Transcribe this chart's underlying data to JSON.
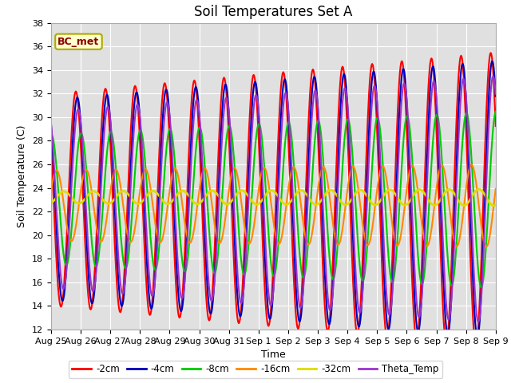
{
  "title": "Soil Temperatures Set A",
  "xlabel": "Time",
  "ylabel": "Soil Temperature (C)",
  "ylim": [
    12,
    38
  ],
  "xlim": [
    0,
    15
  ],
  "annotation": "BC_met",
  "background_color": "#e0e0e0",
  "legend_entries": [
    "-2cm",
    "-4cm",
    "-8cm",
    "-16cm",
    "-32cm",
    "Theta_Temp"
  ],
  "line_colors": [
    "#ff0000",
    "#0000bb",
    "#00cc00",
    "#ff8800",
    "#dddd00",
    "#9933cc"
  ],
  "x_tick_labels": [
    "Aug 25",
    "Aug 26",
    "Aug 27",
    "Aug 28",
    "Aug 29",
    "Aug 30",
    "Aug 31",
    "Sep 1",
    "Sep 2",
    "Sep 3",
    "Sep 4",
    "Sep 5",
    "Sep 6",
    "Sep 7",
    "Sep 8",
    "Sep 9"
  ],
  "grid_color": "#ffffff",
  "title_fontsize": 12,
  "axis_fontsize": 9,
  "tick_fontsize": 8
}
